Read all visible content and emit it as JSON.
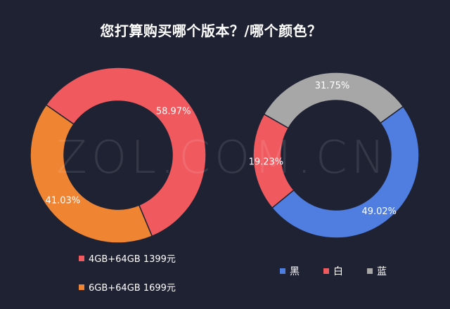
{
  "title": "您打算购买哪个版本？/哪个颜色？",
  "watermark": "ZOL.COM.CN",
  "chart_data": [
    {
      "type": "pie",
      "variant": "donut",
      "slices": [
        {
          "label": "4GB+64GB 1399元",
          "value": 58.97,
          "percent_label": "58.97%",
          "color": "#f05a5f"
        },
        {
          "label": "6GB+64GB 1699元",
          "value": 41.03,
          "percent_label": "41.03%",
          "color": "#ef8433"
        }
      ],
      "legend_placement": "bottom-left"
    },
    {
      "type": "pie",
      "variant": "donut",
      "slices": [
        {
          "label": "黑",
          "value": 49.02,
          "percent_label": "49.02%",
          "color": "#4f7de0"
        },
        {
          "label": "白",
          "value": 19.23,
          "percent_label": "19.23%",
          "color": "#f05a5f"
        },
        {
          "label": "蓝",
          "value": 31.75,
          "percent_label": "31.75%",
          "color": "#a7a7a7"
        }
      ],
      "legend_placement": "bottom"
    }
  ]
}
